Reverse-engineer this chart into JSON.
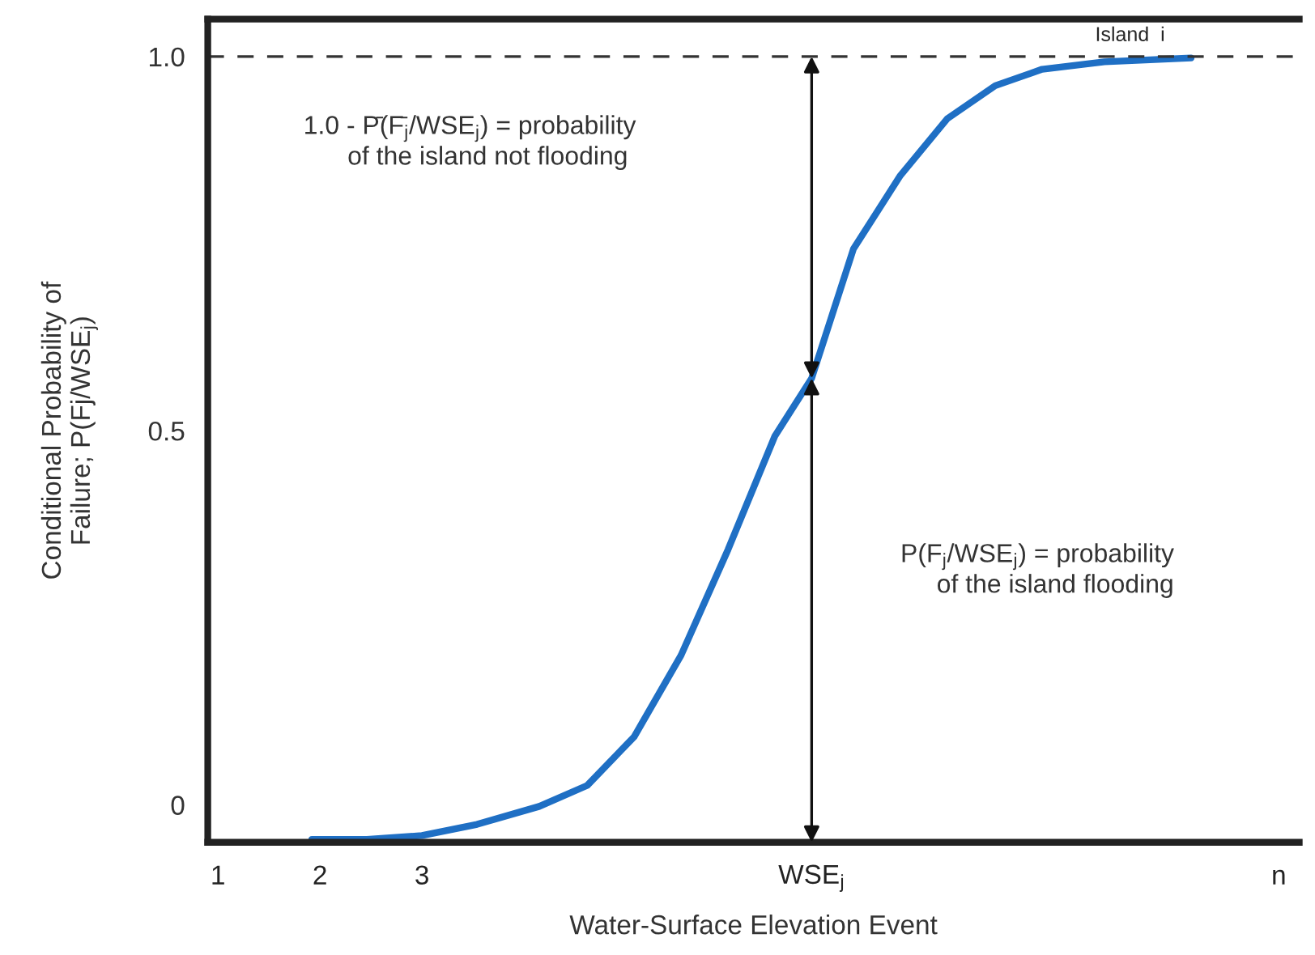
{
  "chart_data": {
    "type": "line",
    "xlabel": "Water-Surface Elevation Event",
    "ylabel": "Conditional Probability of\nFailure; P(Fj/WSE$_{j}$)",
    "x": [
      1.92,
      2.46,
      3.0,
      3.54,
      4.15,
      4.62,
      5.08,
      5.54,
      6.0,
      6.46,
      6.82,
      7.23,
      7.69,
      8.15,
      8.62,
      9.08,
      9.69,
      10.54
    ],
    "series": [
      {
        "color": "#1f6fc4",
        "values": [
          -0.046,
          -0.046,
          -0.041,
          -0.026,
          -0.002,
          0.026,
          0.091,
          0.2,
          0.341,
          0.493,
          0.57,
          0.743,
          0.841,
          0.917,
          0.961,
          0.983,
          0.993,
          0.998
        ]
      }
    ],
    "xlim": [
      0.9,
      11.6
    ],
    "xticks": [
      1,
      2,
      3,
      {
        "value": 6.82,
        "label": "WSE$_{j}$"
      },
      {
        "value": 11.4,
        "label": "n"
      }
    ],
    "ylim": [
      -0.05,
      1.05
    ],
    "yticks": [
      0,
      0.5,
      {
        "value": 1.0,
        "label": "1.0"
      }
    ],
    "ref_lines": [
      {
        "axis": "y",
        "value": 1.0,
        "label": "Island  i",
        "color": "#333333",
        "line_style": "dashed"
      }
    ],
    "annotations": [
      "1.0 - P̄(F̄$_{j}$/WSE$_{j}$) = probability\n     of the island not flooding",
      "P(F$_{j}$/WSE$_{j}$) = probability\n     of the island flooding"
    ],
    "grid": false,
    "legend": false,
    "marker": "none",
    "line_style": "solid"
  }
}
